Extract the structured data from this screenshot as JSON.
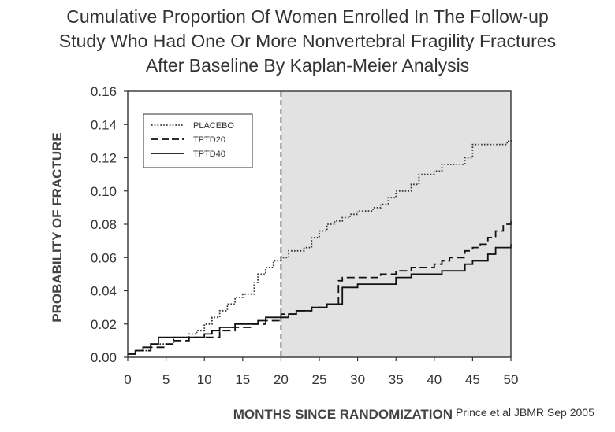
{
  "title_lines": [
    "Cumulative Proportion Of Women Enrolled In The Follow-up",
    "Study Who Had One Or More Nonvertebral Fragility Fractures",
    "After Baseline By Kaplan-Meier Analysis"
  ],
  "credit": "Prince et al JBMR Sep 2005",
  "chart_data": {
    "type": "line",
    "title": "Cumulative Proportion Of Women Enrolled In The Follow-up Study Who Had One Or More Nonvertebral Fragility Fractures After Baseline By Kaplan-Meier Analysis",
    "xlabel": "MONTHS SINCE RANDOMIZATION",
    "ylabel": "PROBABILITY OF FRACTURE",
    "xlim": [
      0,
      50
    ],
    "ylim": [
      0,
      0.16
    ],
    "xticks": [
      0,
      5,
      10,
      15,
      20,
      25,
      30,
      35,
      40,
      45,
      50
    ],
    "yticks": [
      "0.00",
      "0.02",
      "0.04",
      "0.06",
      "0.08",
      "0.10",
      "0.12",
      "0.14",
      "0.16"
    ],
    "vline_x": 20,
    "shaded_region": [
      20,
      50
    ],
    "shade_color": "#e2e2e2",
    "grid": false,
    "legend_position": "top-left",
    "series": [
      {
        "name": "PLACEBO",
        "style": "dotted",
        "points": [
          [
            0,
            0.002
          ],
          [
            1,
            0.004
          ],
          [
            3,
            0.008
          ],
          [
            6,
            0.012
          ],
          [
            8,
            0.014
          ],
          [
            9,
            0.016
          ],
          [
            10,
            0.02
          ],
          [
            11,
            0.024
          ],
          [
            12,
            0.028
          ],
          [
            13,
            0.032
          ],
          [
            14,
            0.036
          ],
          [
            15,
            0.038
          ],
          [
            16,
            0.038
          ],
          [
            16.5,
            0.045
          ],
          [
            17,
            0.05
          ],
          [
            18,
            0.054
          ],
          [
            19,
            0.058
          ],
          [
            20,
            0.06
          ],
          [
            21,
            0.064
          ],
          [
            23,
            0.066
          ],
          [
            24,
            0.072
          ],
          [
            25,
            0.076
          ],
          [
            26,
            0.08
          ],
          [
            27,
            0.082
          ],
          [
            28,
            0.084
          ],
          [
            29,
            0.086
          ],
          [
            30,
            0.088
          ],
          [
            31,
            0.088
          ],
          [
            32,
            0.09
          ],
          [
            33,
            0.092
          ],
          [
            34,
            0.096
          ],
          [
            35,
            0.1
          ],
          [
            37,
            0.104
          ],
          [
            38,
            0.11
          ],
          [
            40,
            0.112
          ],
          [
            41,
            0.116
          ],
          [
            43,
            0.116
          ],
          [
            44,
            0.12
          ],
          [
            45,
            0.128
          ],
          [
            48,
            0.128
          ],
          [
            49,
            0.128
          ],
          [
            49.5,
            0.13
          ],
          [
            50,
            0.132
          ]
        ]
      },
      {
        "name": "TPTD20",
        "style": "dashed",
        "points": [
          [
            0,
            0.002
          ],
          [
            1,
            0.004
          ],
          [
            3,
            0.006
          ],
          [
            5,
            0.008
          ],
          [
            6,
            0.01
          ],
          [
            8,
            0.012
          ],
          [
            10,
            0.012
          ],
          [
            12,
            0.016
          ],
          [
            14,
            0.018
          ],
          [
            16,
            0.02
          ],
          [
            18,
            0.022
          ],
          [
            20,
            0.026
          ],
          [
            22,
            0.028
          ],
          [
            24,
            0.03
          ],
          [
            26,
            0.032
          ],
          [
            27,
            0.032
          ],
          [
            27.5,
            0.046
          ],
          [
            28,
            0.048
          ],
          [
            30,
            0.048
          ],
          [
            32,
            0.048
          ],
          [
            33,
            0.05
          ],
          [
            35,
            0.052
          ],
          [
            37,
            0.054
          ],
          [
            38,
            0.054
          ],
          [
            40,
            0.056
          ],
          [
            41,
            0.058
          ],
          [
            42,
            0.06
          ],
          [
            44,
            0.064
          ],
          [
            45,
            0.066
          ],
          [
            46,
            0.068
          ],
          [
            47,
            0.072
          ],
          [
            48,
            0.076
          ],
          [
            49,
            0.08
          ],
          [
            50,
            0.082
          ]
        ]
      },
      {
        "name": "TPTD40",
        "style": "solid",
        "points": [
          [
            0,
            0.002
          ],
          [
            1,
            0.004
          ],
          [
            2,
            0.006
          ],
          [
            3,
            0.008
          ],
          [
            4,
            0.012
          ],
          [
            9,
            0.012
          ],
          [
            10,
            0.014
          ],
          [
            11,
            0.016
          ],
          [
            12,
            0.018
          ],
          [
            14,
            0.02
          ],
          [
            16,
            0.02
          ],
          [
            17,
            0.022
          ],
          [
            18,
            0.024
          ],
          [
            20,
            0.024
          ],
          [
            21,
            0.026
          ],
          [
            22,
            0.028
          ],
          [
            24,
            0.03
          ],
          [
            26,
            0.032
          ],
          [
            27,
            0.032
          ],
          [
            28,
            0.042
          ],
          [
            30,
            0.044
          ],
          [
            34,
            0.044
          ],
          [
            35,
            0.048
          ],
          [
            37,
            0.05
          ],
          [
            40,
            0.05
          ],
          [
            41,
            0.052
          ],
          [
            43,
            0.052
          ],
          [
            44,
            0.056
          ],
          [
            45,
            0.058
          ],
          [
            47,
            0.062
          ],
          [
            48,
            0.066
          ],
          [
            50,
            0.068
          ]
        ]
      }
    ]
  }
}
